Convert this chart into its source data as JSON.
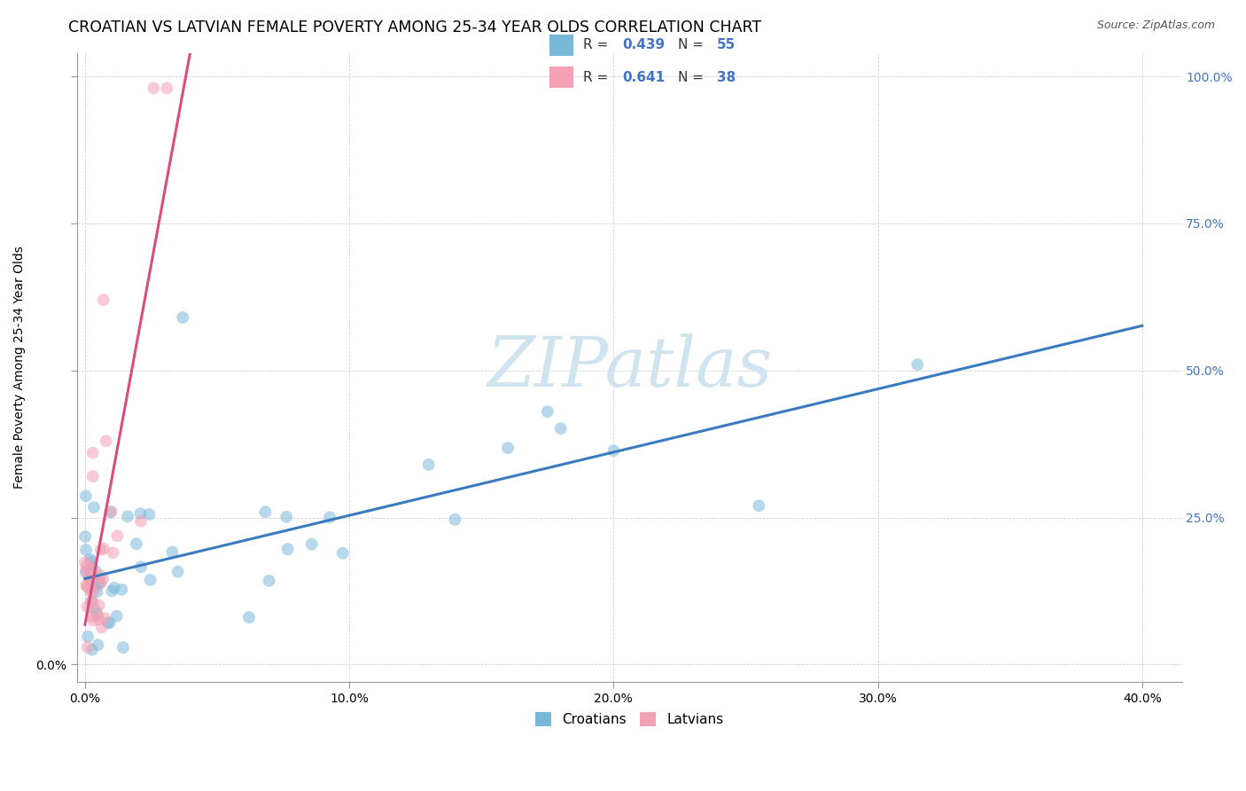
{
  "title": "CROATIAN VS LATVIAN FEMALE POVERTY AMONG 25-34 YEAR OLDS CORRELATION CHART",
  "source": "Source: ZipAtlas.com",
  "ylabel": "Female Poverty Among 25-34 Year Olds",
  "croatians_R": 0.439,
  "croatians_N": 55,
  "latvians_R": 0.641,
  "latvians_N": 38,
  "blue_color": "#7ab8d9",
  "pink_color": "#f4a0b5",
  "blue_line_color": "#3a7bbf",
  "pink_line_color": "#d94f7a",
  "dash_color": "#bbbbbb",
  "watermark_color": "#d0e4f0",
  "right_tick_color": "#4472C4",
  "title_fontsize": 12.5,
  "source_fontsize": 9,
  "axis_label_fontsize": 10,
  "tick_fontsize": 10,
  "marker_size": 100,
  "marker_alpha": 0.55,
  "line_width": 2.2
}
